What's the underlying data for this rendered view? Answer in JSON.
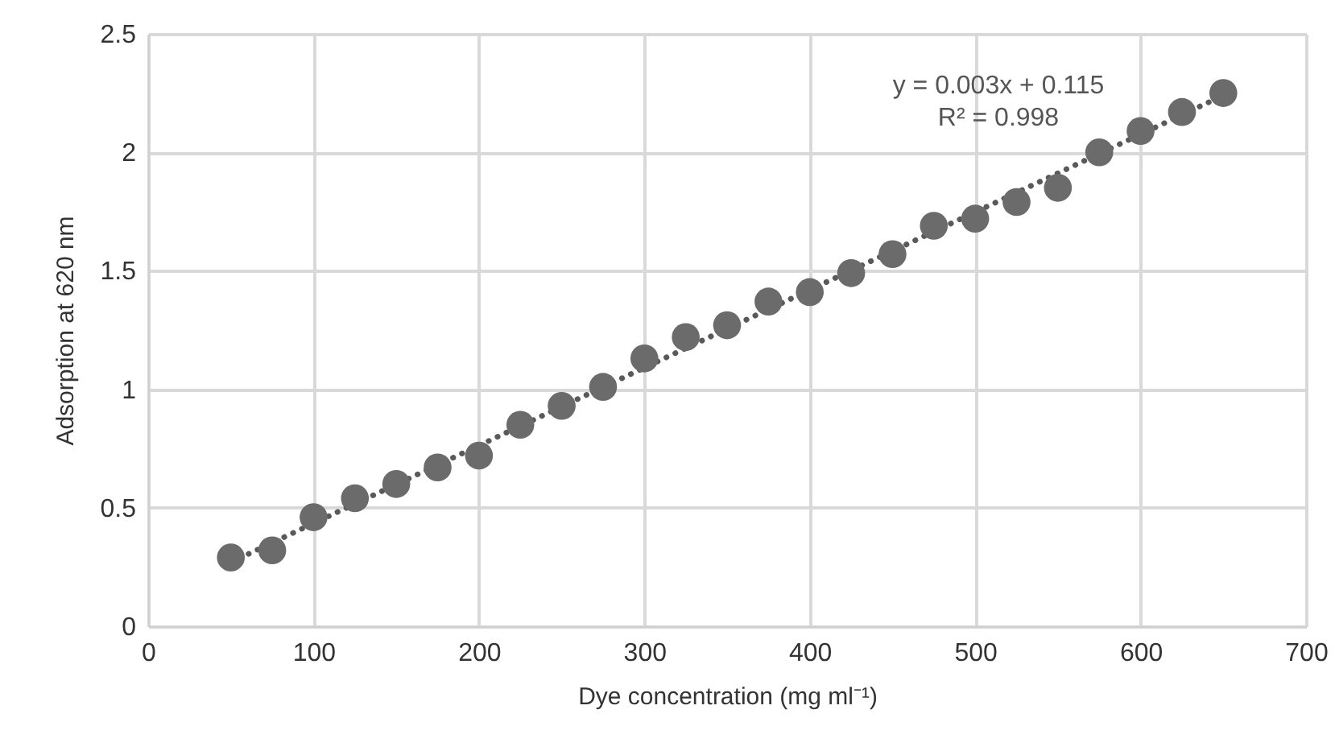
{
  "chart_data": {
    "type": "scatter",
    "xlabel": "Dye concentration (mg ml⁻¹)",
    "ylabel": "Adsorption at 620 nm",
    "xlim": [
      0,
      700
    ],
    "xticks": [
      0,
      100,
      200,
      300,
      400,
      500,
      600,
      700
    ],
    "ylim": [
      0,
      2.5
    ],
    "yticks": [
      0,
      0.5,
      1,
      1.5,
      2,
      2.5
    ],
    "grid": true,
    "annotations": [
      "y = 0.003x + 0.115",
      "R² = 0.998"
    ],
    "series": [
      {
        "color": "#6b6b6b",
        "marker": "circle",
        "x": [
          50,
          75,
          100,
          125,
          150,
          175,
          200,
          225,
          250,
          275,
          300,
          325,
          350,
          375,
          400,
          425,
          450,
          475,
          500,
          525,
          550,
          575,
          600,
          625,
          650
        ],
        "values": [
          0.29,
          0.32,
          0.46,
          0.54,
          0.6,
          0.67,
          0.72,
          0.85,
          0.93,
          1.01,
          1.13,
          1.22,
          1.27,
          1.37,
          1.41,
          1.49,
          1.57,
          1.69,
          1.72,
          1.79,
          1.85,
          2.0,
          2.09,
          2.17,
          2.25
        ]
      },
      {
        "type": "line",
        "color": "#595959",
        "line_style": "dotted",
        "x": [
          50,
          650
        ],
        "values": [
          0.27,
          2.24
        ]
      }
    ]
  }
}
